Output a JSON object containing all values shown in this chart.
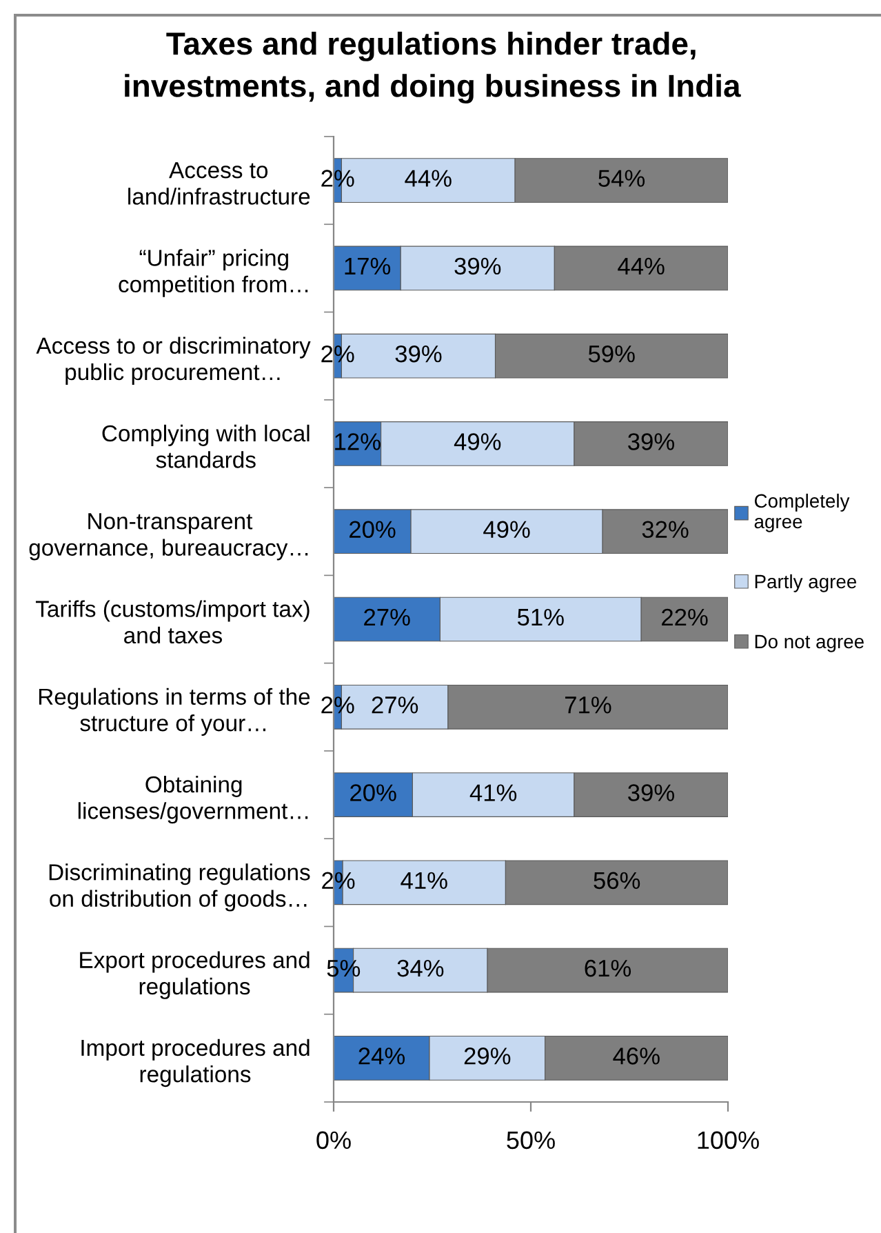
{
  "chart_data": {
    "type": "bar",
    "orientation": "horizontal",
    "stacked": true,
    "title": "Taxes and regulations hinder trade,\ninvestments, and doing business in India",
    "categories": [
      "Access to\nland/infrastructure",
      "“Unfair” pricing\ncompetition from…",
      "Access to or discriminatory\npublic procurement…",
      "Complying with local\nstandards",
      "Non-transparent\ngovernance, bureaucracy…",
      "Tariffs (customs/import tax)\nand taxes",
      "Regulations in terms of the\nstructure of your…",
      "Obtaining\nlicenses/government…",
      "Discriminating regulations\non distribution of goods…",
      "Export procedures and\nregulations",
      "Import procedures and\nregulations"
    ],
    "series": [
      {
        "name": "Completely\nagree",
        "color": "#3a78c3",
        "values": [
          2,
          17,
          2,
          12,
          19.6,
          27,
          2,
          20,
          2.3,
          5,
          24.3
        ],
        "value_labels": [
          "2%",
          "17%",
          "2%",
          "12%",
          "20%",
          "27%",
          "2%",
          "20%",
          "2%",
          "5%",
          "24%"
        ]
      },
      {
        "name": "Partly agree",
        "color": "#c6d9f1",
        "values": [
          44,
          39,
          39,
          49,
          48.6,
          51,
          27,
          41,
          41.3,
          34,
          29.3
        ],
        "value_labels": [
          "44%",
          "39%",
          "39%",
          "49%",
          "49%",
          "51%",
          "27%",
          "41%",
          "41%",
          "34%",
          "29%"
        ]
      },
      {
        "name": "Do not agree",
        "color": "#7f7f7f",
        "values": [
          54,
          44,
          59,
          39,
          31.8,
          22,
          71,
          39,
          56.4,
          61,
          46.4
        ],
        "value_labels": [
          "54%",
          "44%",
          "59%",
          "39%",
          "32%",
          "22%",
          "71%",
          "39%",
          "56%",
          "61%",
          "46%"
        ]
      }
    ],
    "xlim": [
      0,
      100
    ],
    "xticks": [
      {
        "value": 0,
        "label": "0%"
      },
      {
        "value": 50,
        "label": "50%"
      },
      {
        "value": 100,
        "label": "100%"
      }
    ],
    "legend": "right"
  }
}
